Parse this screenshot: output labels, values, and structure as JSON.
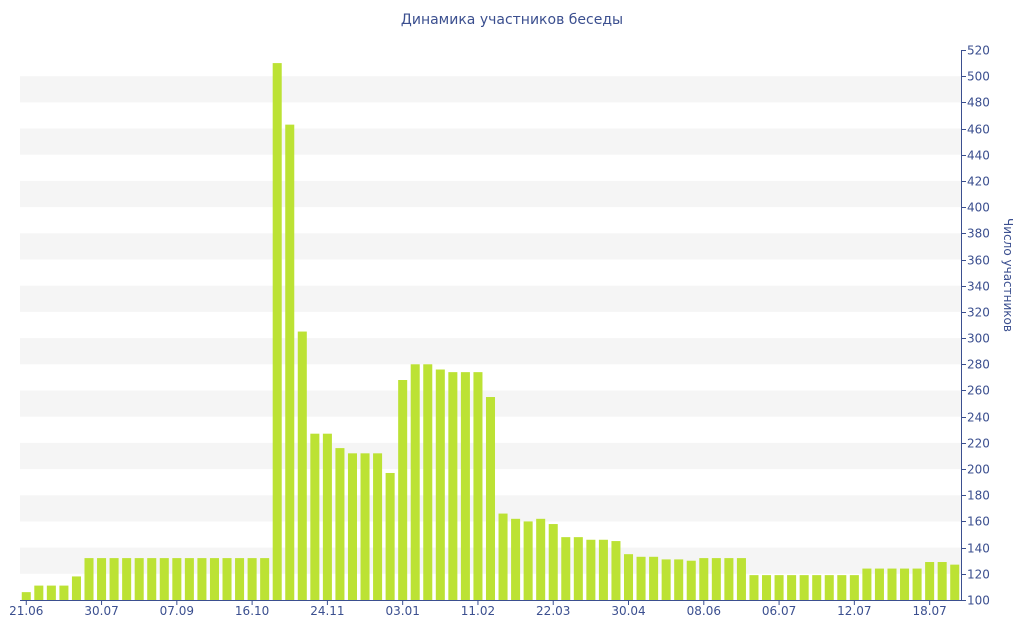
{
  "chart_data": {
    "type": "bar",
    "title": "Динамика участников беседы",
    "ylabel": "Число участников",
    "xlabel": "",
    "ylim": [
      100,
      520
    ],
    "y_ticks": [
      100,
      120,
      140,
      160,
      180,
      200,
      220,
      240,
      260,
      280,
      300,
      320,
      340,
      360,
      380,
      400,
      420,
      440,
      460,
      480,
      500,
      520
    ],
    "x_tick_labels": [
      {
        "label": "21.06",
        "index": 0
      },
      {
        "label": "30.07",
        "index": 6
      },
      {
        "label": "07.09",
        "index": 12
      },
      {
        "label": "16.10",
        "index": 18
      },
      {
        "label": "24.11",
        "index": 24
      },
      {
        "label": "03.01",
        "index": 30
      },
      {
        "label": "11.02",
        "index": 36
      },
      {
        "label": "22.03",
        "index": 42
      },
      {
        "label": "30.04",
        "index": 48
      },
      {
        "label": "08.06",
        "index": 54
      },
      {
        "label": "06.07",
        "index": 60
      },
      {
        "label": "12.07",
        "index": 66
      },
      {
        "label": "18.07",
        "index": 72
      }
    ],
    "values": [
      106,
      111,
      111,
      111,
      118,
      132,
      132,
      132,
      132,
      132,
      132,
      132,
      132,
      132,
      132,
      132,
      132,
      132,
      132,
      132,
      510,
      463,
      305,
      227,
      227,
      216,
      212,
      212,
      212,
      197,
      268,
      280,
      280,
      276,
      274,
      274,
      274,
      255,
      166,
      162,
      160,
      162,
      158,
      148,
      148,
      146,
      146,
      145,
      135,
      133,
      133,
      131,
      131,
      130,
      132,
      132,
      132,
      132,
      119,
      119,
      119,
      119,
      119,
      119,
      119,
      119,
      119,
      124,
      124,
      124,
      124,
      124,
      129,
      129,
      127
    ],
    "bar_color": "#bce234",
    "band_color": "#f5f5f5",
    "axis_color": "#3b4f8f",
    "grid": "alternating bands"
  }
}
